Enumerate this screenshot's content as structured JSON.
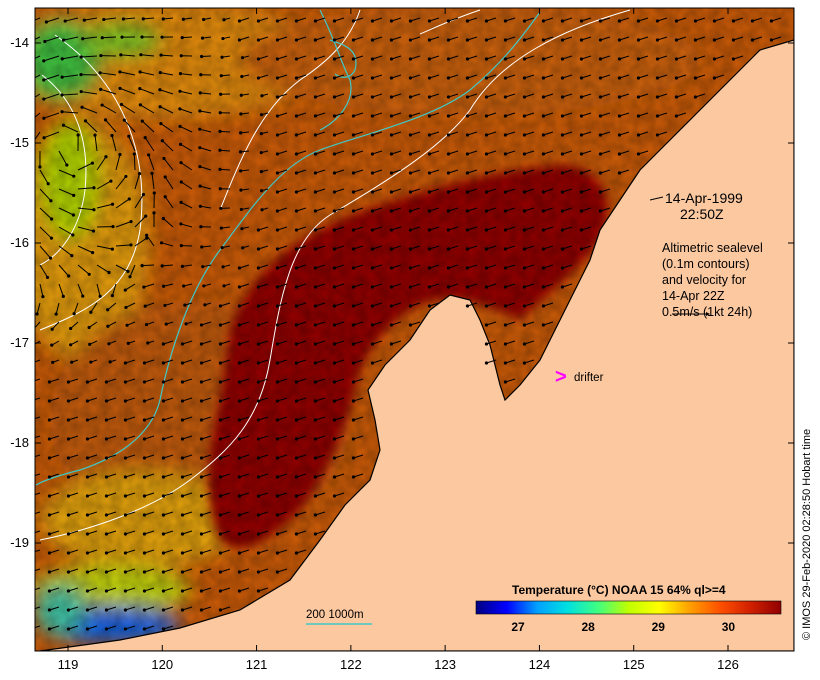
{
  "map": {
    "lon_range": [
      118.65,
      126.7
    ],
    "lat_range": [
      -20.08,
      -13.65
    ],
    "x_ticks": [
      {
        "value": 119,
        "label": "119"
      },
      {
        "value": 120,
        "label": "120"
      },
      {
        "value": 121,
        "label": "121"
      },
      {
        "value": 122,
        "label": "122"
      },
      {
        "value": 123,
        "label": "123"
      },
      {
        "value": 124,
        "label": "124"
      },
      {
        "value": 125,
        "label": "125"
      },
      {
        "value": 126,
        "label": "126"
      }
    ],
    "y_ticks": [
      {
        "value": -14,
        "label": "-14"
      },
      {
        "value": -15,
        "label": "-15"
      },
      {
        "value": -16,
        "label": "-16"
      },
      {
        "value": -17,
        "label": "-17"
      },
      {
        "value": -18,
        "label": "-18"
      },
      {
        "value": -19,
        "label": "-19"
      }
    ],
    "colors": {
      "land": "#fcc8a0",
      "coast": "#000000",
      "contour": "#ffffff",
      "isobath": "#40c8c8",
      "drifter": "#ff00ff"
    }
  },
  "annotation": {
    "date": "14-Apr-1999",
    "time": "22:50Z",
    "lines": [
      "Altimetric sealevel",
      "(0.1m contours)",
      "and velocity for",
      "14-Apr 22Z",
      "0.5m/s (1kt 24h)"
    ]
  },
  "drifter": {
    "symbol": ">",
    "label": "drifter",
    "lon": 124.2,
    "lat": -17.3
  },
  "isobath_legend": {
    "label": "200  1000m"
  },
  "colorbar": {
    "title": "Temperature (°C) NOAA 15 64% ql>=4",
    "range": [
      26.4,
      30.75
    ],
    "ticks": [
      {
        "value": 27,
        "label": "27"
      },
      {
        "value": 28,
        "label": "28"
      },
      {
        "value": 29,
        "label": "29"
      },
      {
        "value": 30,
        "label": "30"
      }
    ],
    "stops": [
      "#000080",
      "#0000ff",
      "#00a0ff",
      "#00e0e0",
      "#40ff80",
      "#c0ff00",
      "#ffff00",
      "#ffa000",
      "#ff5000",
      "#d02000",
      "#900000"
    ]
  },
  "credit": "© IMOS 29-Feb-2020 02:28:50 Hobart time"
}
